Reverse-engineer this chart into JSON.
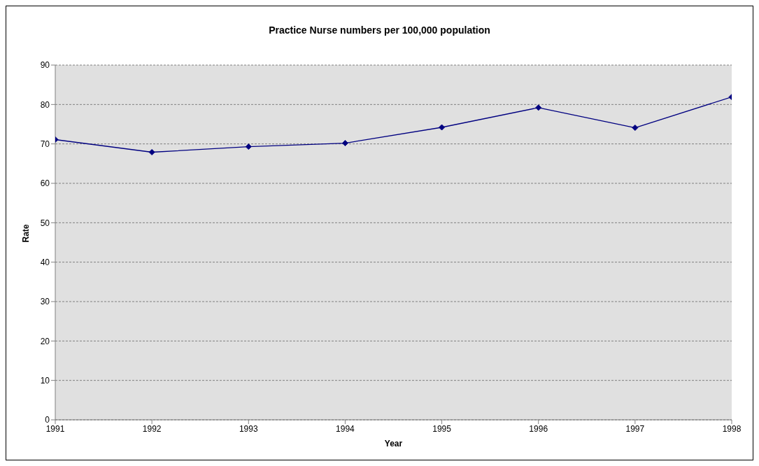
{
  "chart_data": {
    "type": "line",
    "title": "Practice Nurse numbers per 100,000 population",
    "xlabel": "Year",
    "ylabel": "Rate",
    "x": [
      1991,
      1992,
      1993,
      1994,
      1995,
      1996,
      1997,
      1998
    ],
    "series": [
      {
        "color": "#000080",
        "values": [
          71.1,
          67.9,
          69.3,
          70.2,
          74.2,
          79.2,
          74.1,
          81.9
        ]
      }
    ],
    "xlim": [
      1991,
      1998
    ],
    "xticks": [
      1991,
      1992,
      1993,
      1994,
      1995,
      1996,
      1997,
      1998
    ],
    "ylim": [
      0,
      90
    ],
    "yticks": [
      0,
      10,
      20,
      30,
      40,
      50,
      60,
      70,
      80,
      90
    ],
    "grid": "y",
    "marker": "diamond",
    "line_style": "solid",
    "legend": false
  }
}
